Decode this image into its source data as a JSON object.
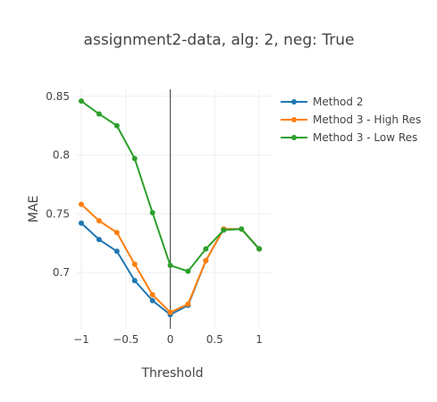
{
  "chart_data": {
    "type": "line",
    "title": "assignment2-data, alg: 2, neg: True",
    "xlabel": "Threshold",
    "ylabel": "MAE",
    "xlim": [
      -1.05,
      1.15
    ],
    "ylim": [
      0.652,
      0.856
    ],
    "x_ticks": [
      -1,
      -0.5,
      0,
      0.5,
      1
    ],
    "x_tick_labels": [
      "−1",
      "−0.5",
      "0",
      "0.5",
      "1"
    ],
    "y_ticks": [
      0.7,
      0.75,
      0.8,
      0.85
    ],
    "y_tick_labels": [
      "0.7",
      "0.75",
      "0.8",
      "0.85"
    ],
    "grid": true,
    "zero_line_x": true,
    "legend_position": "top-right",
    "x": [
      -1,
      -0.8,
      -0.6,
      -0.4,
      -0.2,
      0,
      0.2,
      0.4,
      0.6,
      0.8,
      1
    ],
    "series": [
      {
        "name": "Method 2",
        "color": "#1f77b4",
        "values": [
          0.742,
          0.728,
          0.718,
          0.693,
          0.676,
          0.664,
          0.672,
          0.71,
          0.737,
          0.737,
          0.72
        ]
      },
      {
        "name": "Method 3 - High Res",
        "color": "#ff7f0e",
        "values": [
          0.758,
          0.744,
          0.734,
          0.707,
          0.681,
          0.666,
          0.673,
          0.71,
          0.737,
          0.737,
          0.72
        ]
      },
      {
        "name": "Method 3 - Low Res",
        "color": "#2ca02c",
        "values": [
          0.846,
          0.835,
          0.825,
          0.797,
          0.751,
          0.706,
          0.701,
          0.72,
          0.736,
          0.737,
          0.72
        ]
      }
    ]
  }
}
